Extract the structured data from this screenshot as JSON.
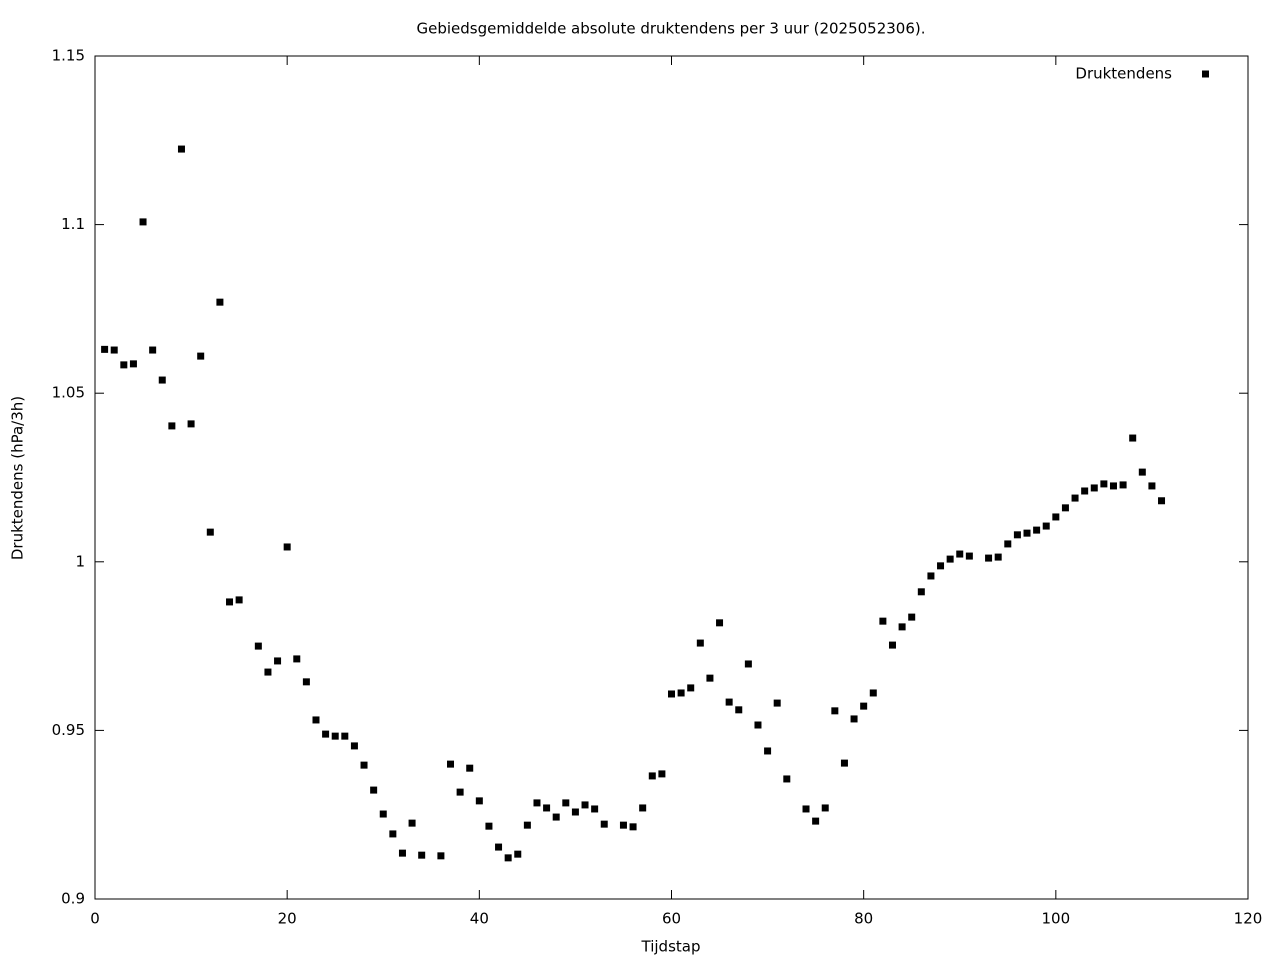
{
  "chart_data": {
    "type": "scatter",
    "title": "Gebiedsgemiddelde absolute druktendens per 3 uur (2025052306).",
    "x_label": "Tijdstap",
    "y_label": "Druktendens (hPa/3h)",
    "legend": "top-right",
    "series": [
      {
        "name": "Druktendens",
        "color": "#000000",
        "x": [
          1,
          2,
          3,
          4,
          5,
          6,
          7,
          8,
          9,
          10,
          11,
          12,
          13,
          14,
          15,
          17,
          18,
          19,
          20,
          21,
          22,
          23,
          24,
          25,
          26,
          27,
          28,
          29,
          30,
          31,
          32,
          33,
          34,
          36,
          37,
          38,
          39,
          40,
          41,
          42,
          43,
          44,
          45,
          46,
          47,
          48,
          49,
          50,
          51,
          52,
          53,
          55,
          56,
          57,
          58,
          59,
          60,
          61,
          62,
          63,
          64,
          65,
          66,
          67,
          68,
          69,
          70,
          71,
          72,
          74,
          75,
          76,
          77,
          78,
          79,
          80,
          81,
          82,
          83,
          84,
          85,
          86,
          87,
          88,
          89,
          90,
          91,
          93,
          94,
          95,
          96,
          97,
          98,
          99,
          100,
          101,
          102,
          103,
          104,
          105,
          106,
          107,
          108,
          109,
          110,
          111
        ],
        "values": [
          1.063,
          1.0628,
          1.0584,
          1.0587,
          1.1008,
          1.0628,
          1.0539,
          1.0403,
          1.1224,
          1.0409,
          1.061,
          1.0088,
          1.077,
          0.9881,
          0.9887,
          0.975,
          0.9673,
          0.9706,
          1.0044,
          0.9712,
          0.9644,
          0.9531,
          0.9489,
          0.9483,
          0.9483,
          0.9454,
          0.9397,
          0.9323,
          0.9252,
          0.9193,
          0.9136,
          0.9225,
          0.913,
          0.9128,
          0.94,
          0.9317,
          0.9388,
          0.9291,
          0.9216,
          0.9154,
          0.9122,
          0.9133,
          0.9219,
          0.9285,
          0.927,
          0.9243,
          0.9285,
          0.9258,
          0.9279,
          0.9267,
          0.9222,
          0.9219,
          0.9214,
          0.927,
          0.9365,
          0.9371,
          0.9608,
          0.9611,
          0.9626,
          0.9759,
          0.9655,
          0.9819,
          0.9584,
          0.9561,
          0.9697,
          0.9516,
          0.9439,
          0.9581,
          0.9356,
          0.9267,
          0.9231,
          0.927,
          0.9558,
          0.9403,
          0.9534,
          0.9572,
          0.9611,
          0.9824,
          0.9753,
          0.9807,
          0.9836,
          0.9911,
          0.9958,
          0.9988,
          1.0008,
          1.0023,
          1.0017,
          1.0011,
          1.0014,
          1.0053,
          1.008,
          1.0085,
          1.0094,
          1.0106,
          1.0133,
          1.016,
          1.0189,
          1.021,
          1.0219,
          1.0231,
          1.0225,
          1.0228,
          1.0367,
          1.0266,
          1.0225,
          1.0181
        ]
      }
    ],
    "xlim": [
      0,
      120
    ],
    "xticks": [
      0,
      20,
      40,
      60,
      80,
      100,
      120
    ],
    "ylim": [
      0.9,
      1.15
    ],
    "yticks": [
      0.9,
      0.95,
      1,
      1.05,
      1.1,
      1.15
    ]
  }
}
